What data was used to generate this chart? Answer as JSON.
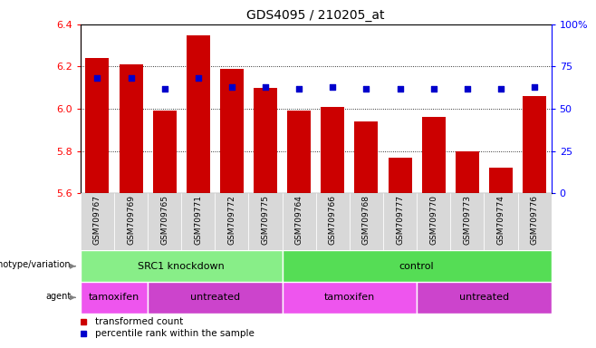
{
  "title": "GDS4095 / 210205_at",
  "samples": [
    "GSM709767",
    "GSM709769",
    "GSM709765",
    "GSM709771",
    "GSM709772",
    "GSM709775",
    "GSM709764",
    "GSM709766",
    "GSM709768",
    "GSM709777",
    "GSM709770",
    "GSM709773",
    "GSM709774",
    "GSM709776"
  ],
  "bar_values": [
    6.24,
    6.21,
    5.99,
    6.35,
    6.19,
    6.1,
    5.99,
    6.01,
    5.94,
    5.77,
    5.96,
    5.8,
    5.72,
    6.06
  ],
  "percentile_values": [
    68,
    68,
    62,
    68,
    63,
    63,
    62,
    63,
    62,
    62,
    62,
    62,
    62,
    63
  ],
  "ylim_left": [
    5.6,
    6.4
  ],
  "ylim_right": [
    0,
    100
  ],
  "bar_color": "#cc0000",
  "dot_color": "#0000cc",
  "genotype_groups": [
    {
      "label": "SRC1 knockdown",
      "start": 0,
      "end": 6,
      "color": "#88ee88"
    },
    {
      "label": "control",
      "start": 6,
      "end": 14,
      "color": "#55dd55"
    }
  ],
  "agent_groups": [
    {
      "label": "tamoxifen",
      "start": 0,
      "end": 2,
      "color": "#ee55ee"
    },
    {
      "label": "untreated",
      "start": 2,
      "end": 6,
      "color": "#cc44cc"
    },
    {
      "label": "tamoxifen",
      "start": 6,
      "end": 10,
      "color": "#ee55ee"
    },
    {
      "label": "untreated",
      "start": 10,
      "end": 14,
      "color": "#cc44cc"
    }
  ],
  "legend_items": [
    {
      "label": "transformed count",
      "color": "#cc0000"
    },
    {
      "label": "percentile rank within the sample",
      "color": "#0000cc"
    }
  ],
  "left_yticks": [
    5.6,
    5.8,
    6.0,
    6.2,
    6.4
  ],
  "right_yticks": [
    0,
    25,
    50,
    75,
    100
  ],
  "right_ytick_labels": [
    "0",
    "25",
    "50",
    "75",
    "100%"
  ],
  "bar_width": 0.7,
  "xtick_bg_color": "#d8d8d8",
  "xtick_grid_color": "#aaaaaa"
}
